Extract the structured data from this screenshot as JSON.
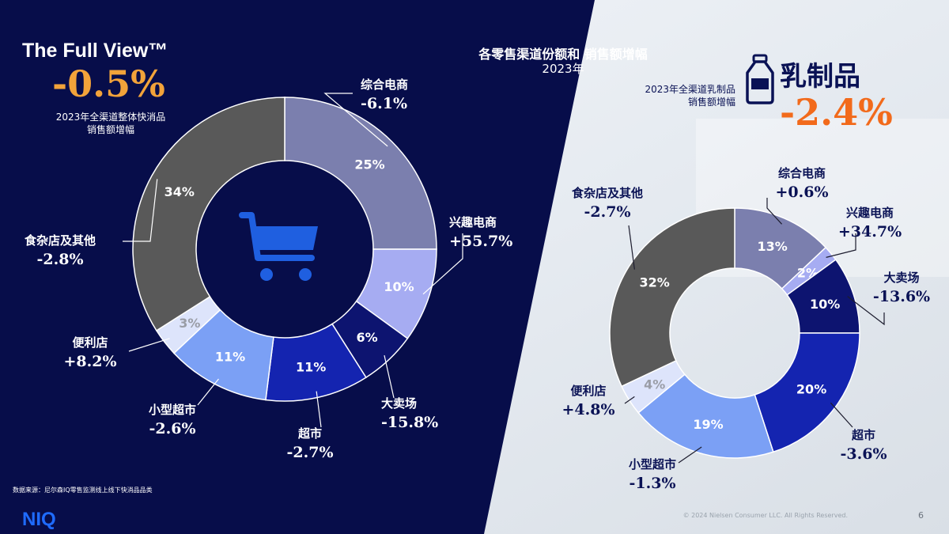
{
  "full_view": {
    "title": "The Full View™",
    "value": "-0.5%",
    "desc_line1": "2023年全渠道整体快消品",
    "desc_line2": "销售额增幅"
  },
  "center_header": {
    "title": "各零售渠道份额和 销售额增幅",
    "year": "2023年"
  },
  "dairy": {
    "title": "乳制品",
    "value": "-2.4%",
    "desc_line1": "2023年全渠道乳制品",
    "desc_line2": "销售额增幅"
  },
  "source_note": "数据来源：尼尔森IQ零售监测线上线下快消品品类",
  "brand": "NIQ",
  "copyright": "© 2024 Nielsen Consumer LLC. All Rights Reserved.",
  "page_number": "6",
  "colors": {
    "left_bg": "#070d4a",
    "accent_orange": "#f2a33a",
    "dairy_orange": "#f26a1b",
    "icon_blue": "#1f5fe0"
  },
  "chart_data": [
    {
      "type": "pie",
      "donut": true,
      "title": "The Full View™",
      "categories": [
        "综合电商",
        "兴趣电商",
        "大卖场",
        "超市",
        "小型超市",
        "便利店",
        "食杂店及其他"
      ],
      "values": [
        25,
        10,
        6,
        11,
        11,
        3,
        34
      ],
      "value_labels": [
        "25%",
        "10%",
        "6%",
        "11%",
        "11%",
        "3%",
        "34%"
      ],
      "growth": [
        "-6.1%",
        "+55.7%",
        "-15.8%",
        "-2.7%",
        "-2.6%",
        "+8.2%",
        "-2.8%"
      ],
      "colors": [
        "#7b7fae",
        "#a6acf2",
        "#0d1470",
        "#1424b0",
        "#7ba0f5",
        "#dde4fb",
        "#595959"
      ]
    },
    {
      "type": "pie",
      "donut": true,
      "title": "乳制品",
      "categories": [
        "综合电商",
        "兴趣电商",
        "大卖场",
        "超市",
        "小型超市",
        "便利店",
        "食杂店及其他"
      ],
      "values": [
        13,
        2,
        10,
        20,
        19,
        4,
        32
      ],
      "value_labels": [
        "13%",
        "2%",
        "10%",
        "20%",
        "19%",
        "4%",
        "32%"
      ],
      "growth": [
        "+0.6%",
        "+34.7%",
        "-13.6%",
        "-3.6%",
        "-1.3%",
        "+4.8%",
        "-2.7%"
      ],
      "colors": [
        "#7b7fae",
        "#a6acf2",
        "#0d1470",
        "#1424b0",
        "#7ba0f5",
        "#dde4fb",
        "#595959"
      ]
    }
  ]
}
